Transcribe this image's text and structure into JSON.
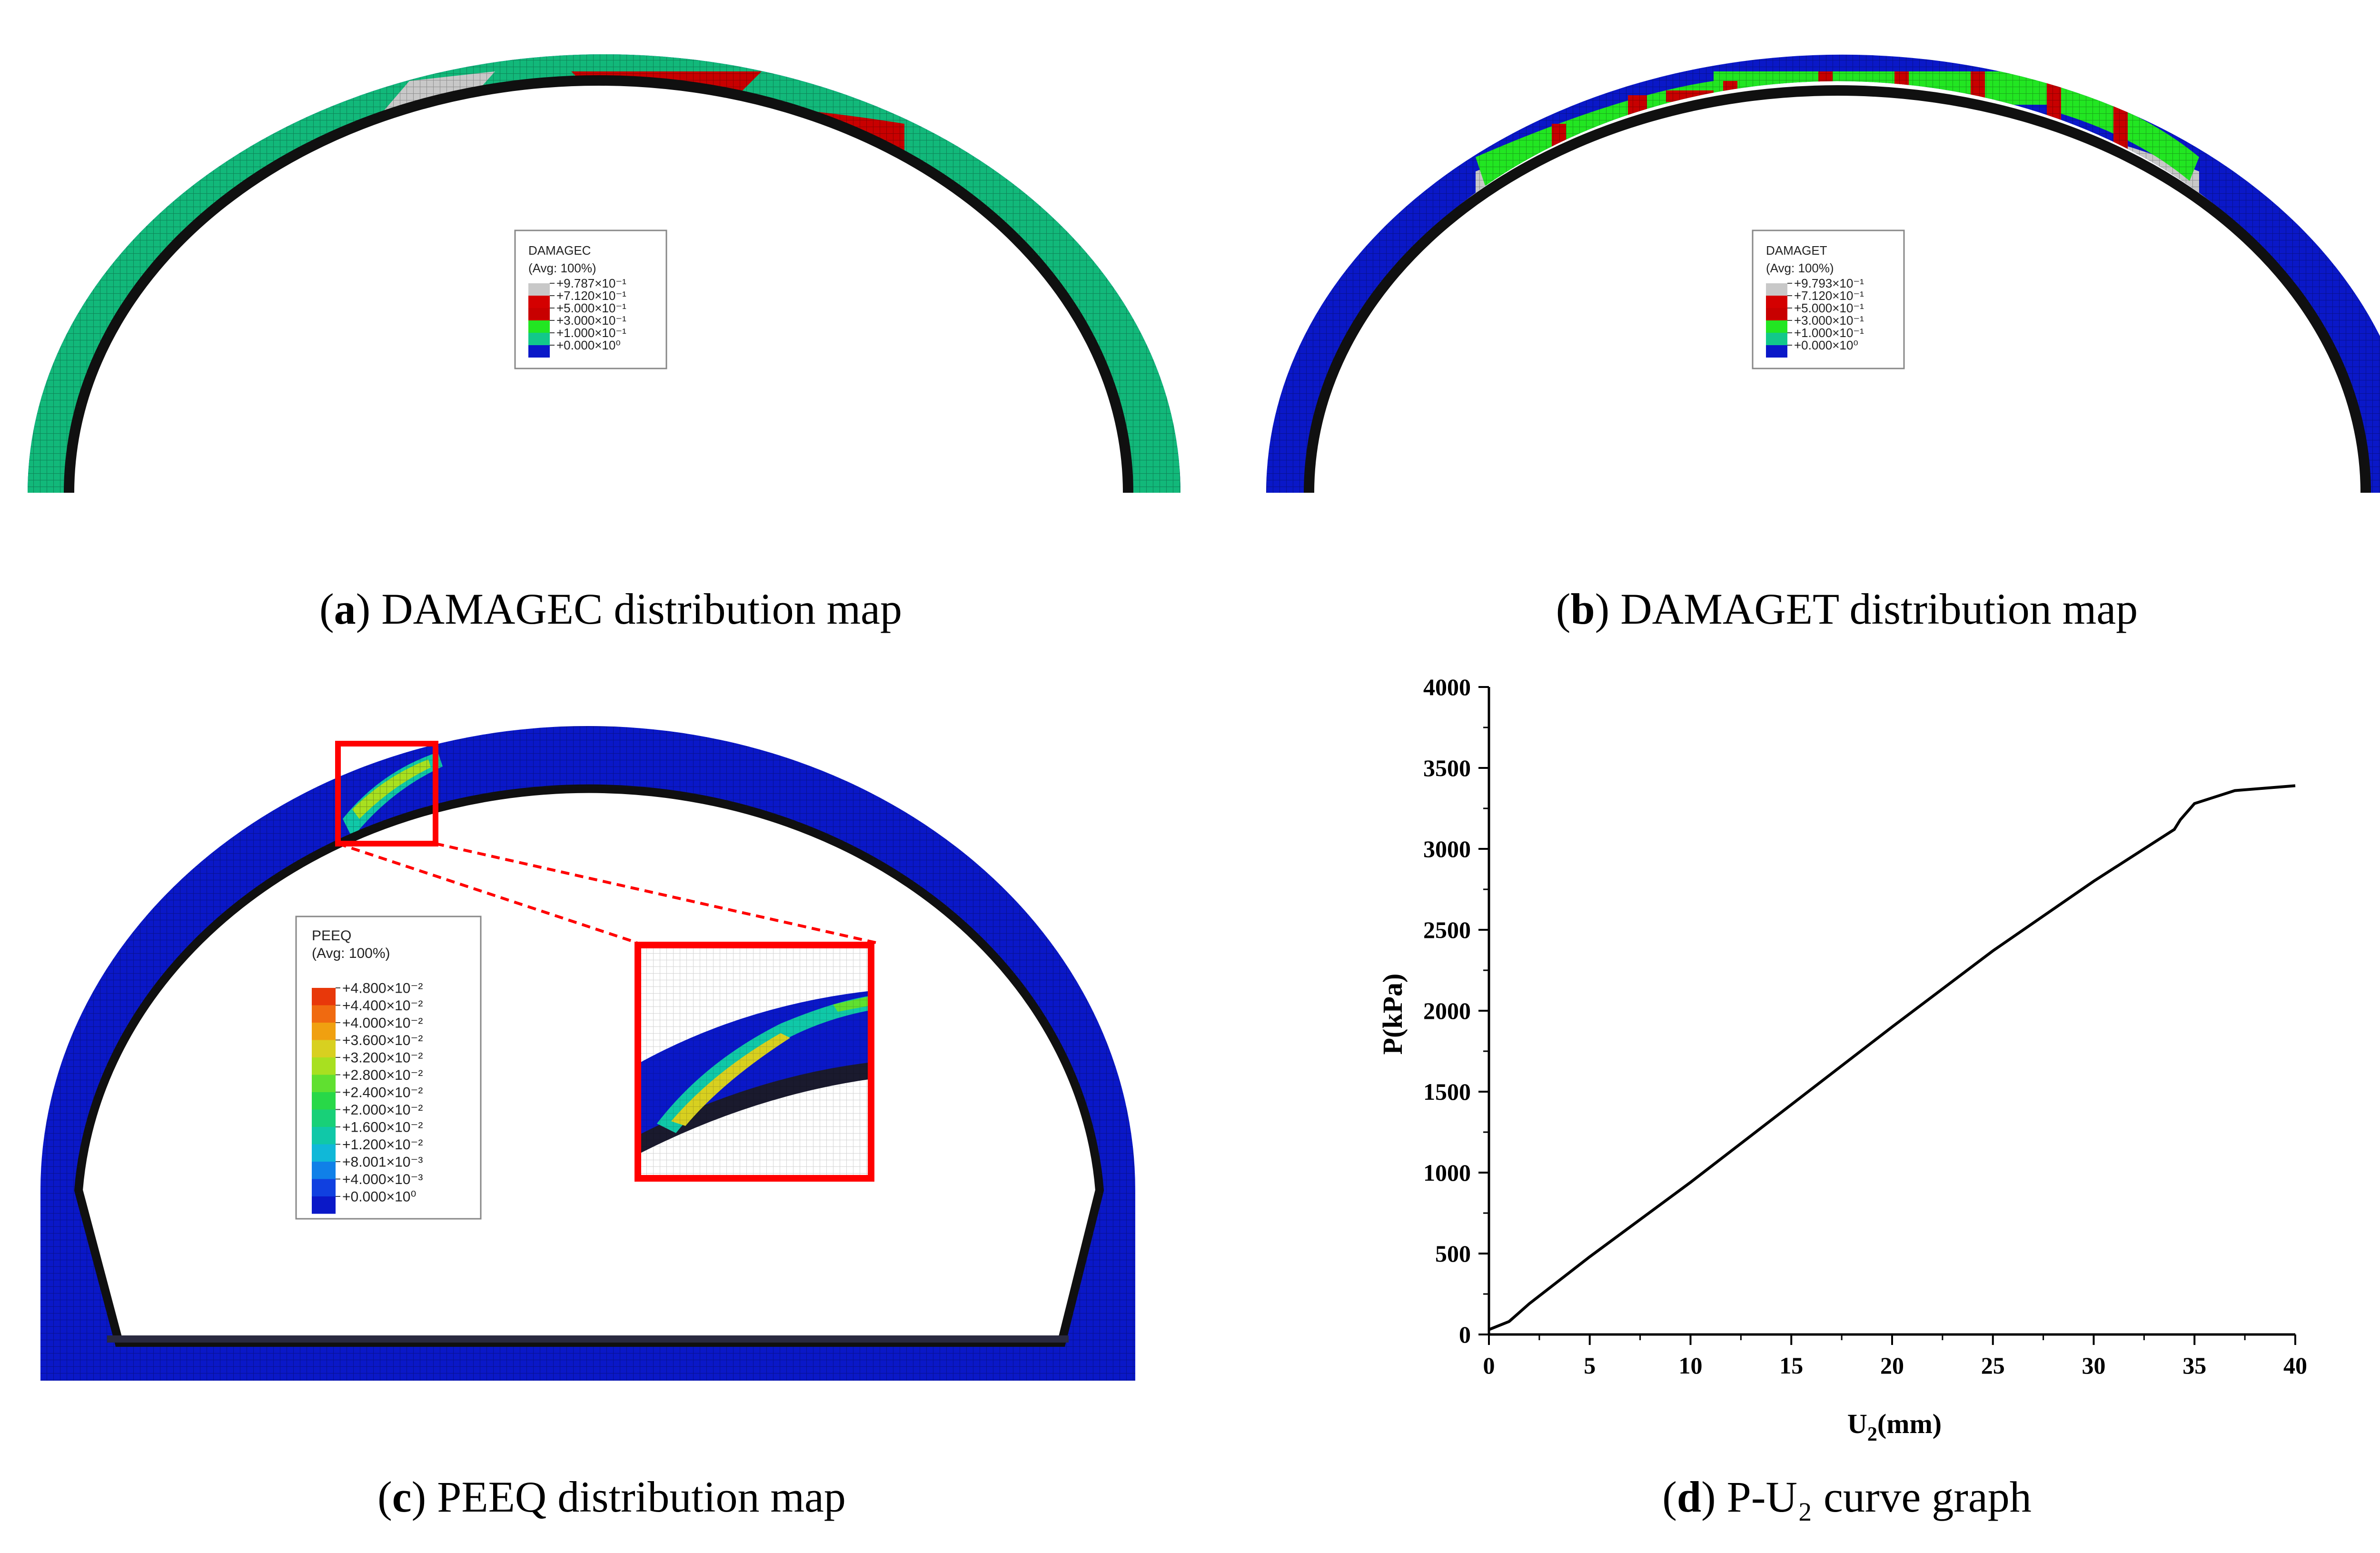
{
  "captions": {
    "a": {
      "letter": "a",
      "text": ") DAMAGEC distribution map"
    },
    "b": {
      "letter": "b",
      "text": ") DAMAGET distribution map"
    },
    "c": {
      "letter": "c",
      "text": ") PEEQ distribution map"
    },
    "d": {
      "letter": "d",
      "text": ") P-U₂ curve graph"
    }
  },
  "legend_a": {
    "title": "DAMAGEC",
    "subtitle": "(Avg: 100%)",
    "entries": [
      {
        "label": "+9.787×10⁻¹",
        "color": "#c8c8c8"
      },
      {
        "label": "+7.120×10⁻¹",
        "color": "#d40000"
      },
      {
        "label": "+5.000×10⁻¹",
        "color": "#c80000"
      },
      {
        "label": "+3.000×10⁻¹",
        "color": "#22e622"
      },
      {
        "label": "+1.000×10⁻¹",
        "color": "#12c88a"
      },
      {
        "label": "+0.000×10⁰",
        "color": "#0a18c8"
      }
    ]
  },
  "legend_b": {
    "title": "DAMAGET",
    "subtitle": "(Avg: 100%)",
    "entries": [
      {
        "label": "+9.793×10⁻¹",
        "color": "#c8c8c8"
      },
      {
        "label": "+7.120×10⁻¹",
        "color": "#d40000"
      },
      {
        "label": "+5.000×10⁻¹",
        "color": "#c80000"
      },
      {
        "label": "+3.000×10⁻¹",
        "color": "#22e622"
      },
      {
        "label": "+1.000×10⁻¹",
        "color": "#12c88a"
      },
      {
        "label": "+0.000×10⁰",
        "color": "#0a18c8"
      }
    ]
  },
  "legend_c": {
    "title": "PEEQ",
    "subtitle": "(Avg: 100%)",
    "entries": [
      {
        "label": "+4.800×10⁻²",
        "color": "#e8380a"
      },
      {
        "label": "+4.400×10⁻²",
        "color": "#f06a10"
      },
      {
        "label": "+4.000×10⁻²",
        "color": "#f0a010"
      },
      {
        "label": "+3.600×10⁻²",
        "color": "#d8d020"
      },
      {
        "label": "+3.200×10⁻²",
        "color": "#a8e020"
      },
      {
        "label": "+2.800×10⁻²",
        "color": "#60e030"
      },
      {
        "label": "+2.400×10⁻²",
        "color": "#28d848"
      },
      {
        "label": "+2.000×10⁻²",
        "color": "#18d078"
      },
      {
        "label": "+1.600×10⁻²",
        "color": "#10c8a8"
      },
      {
        "label": "+1.200×10⁻²",
        "color": "#10b8d8"
      },
      {
        "label": "+8.001×10⁻³",
        "color": "#1080e8"
      },
      {
        "label": "+4.000×10⁻³",
        "color": "#1040e0"
      },
      {
        "label": "+0.000×10⁰",
        "color": "#0a18c8"
      }
    ]
  },
  "colors": {
    "blue": "#0a18c8",
    "teal": "#12b87a",
    "red": "#c80000",
    "gray": "#c8c8c8",
    "dark": "#101010",
    "highlight": "#ff0000"
  },
  "chart_data": {
    "type": "line",
    "title": "",
    "xlabel": "U",
    "xlabel_sub": "2",
    "xlabel_unit": "(mm)",
    "ylabel": "P(kPa)",
    "xlim": [
      0,
      40
    ],
    "ylim": [
      0,
      4000
    ],
    "xticks": [
      0,
      5,
      10,
      15,
      20,
      25,
      30,
      35,
      40
    ],
    "yticks": [
      0,
      500,
      1000,
      1500,
      2000,
      2500,
      3000,
      3500,
      4000
    ],
    "grid": false,
    "series": [
      {
        "name": "P-U2",
        "x": [
          0,
          1,
          2,
          5,
          10,
          15,
          20,
          25,
          30,
          34,
          34.3,
          35,
          36,
          37,
          40
        ],
        "y": [
          30,
          80,
          190,
          480,
          940,
          1420,
          1900,
          2370,
          2800,
          3120,
          3180,
          3280,
          3320,
          3360,
          3390
        ]
      }
    ]
  }
}
